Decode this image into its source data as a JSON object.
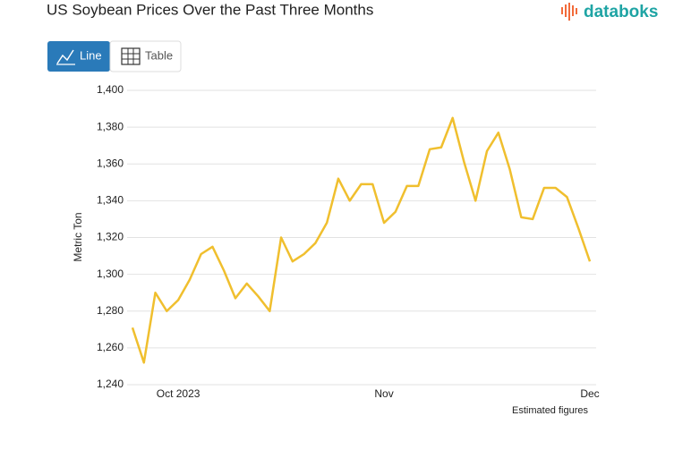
{
  "ui": {
    "logo": "databoks",
    "tabs": [
      "Line",
      "Table"
    ]
  },
  "chart_data": {
    "type": "line",
    "title": "US Soybean Prices Over the Past Three Months",
    "y_label": "Metric Ton",
    "note": "Estimated figures",
    "color": "#f0bf2e",
    "categories": [
      null,
      null,
      null,
      null,
      "Oct 2023",
      null,
      null,
      null,
      null,
      null,
      null,
      null,
      null,
      null,
      null,
      null,
      null,
      null,
      null,
      null,
      null,
      null,
      "Nov",
      null,
      null,
      null,
      null,
      null,
      null,
      null,
      null,
      null,
      null,
      null,
      null,
      null,
      null,
      null,
      null,
      null,
      "Dec"
    ],
    "values": [
      1271,
      1252,
      1290,
      1280,
      1286,
      1297,
      1311,
      1315,
      1302,
      1287,
      1295,
      1288,
      1280,
      1320,
      1307,
      1311,
      1317,
      1328,
      1352,
      1340,
      1349,
      1349,
      1328,
      1334,
      1348,
      1348,
      1368,
      1369,
      1385,
      1361,
      1340,
      1367,
      1377,
      1357,
      1331,
      1330,
      1347,
      1347,
      1342,
      1325,
      1307
    ],
    "ylim": [
      1240,
      1400
    ],
    "yticks": [
      {
        "value": 1240,
        "label": "1,240"
      },
      {
        "value": 1260,
        "label": "1,260"
      },
      {
        "value": 1280,
        "label": "1,280"
      },
      {
        "value": 1300,
        "label": "1,300"
      },
      {
        "value": 1320,
        "label": "1,320"
      },
      {
        "value": 1340,
        "label": "1,340"
      },
      {
        "value": 1360,
        "label": "1,360"
      },
      {
        "value": 1380,
        "label": "1,380"
      },
      {
        "value": 1400,
        "label": "1,400"
      }
    ],
    "grid": true
  }
}
